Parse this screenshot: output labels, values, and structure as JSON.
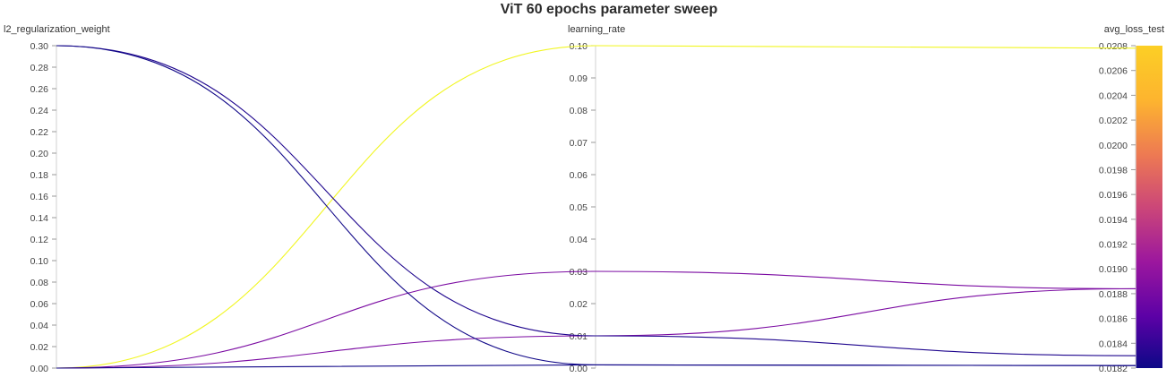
{
  "chart_data": {
    "type": "parallel_coordinates",
    "title": "ViT 60 epochs parameter sweep",
    "axes": [
      {
        "name": "l2_regularization_weight",
        "range": [
          0,
          0.3
        ],
        "ticks": [
          "0.00",
          "0.02",
          "0.04",
          "0.06",
          "0.08",
          "0.10",
          "0.12",
          "0.14",
          "0.16",
          "0.18",
          "0.20",
          "0.22",
          "0.24",
          "0.26",
          "0.28",
          "0.30"
        ]
      },
      {
        "name": "learning_rate",
        "range": [
          0,
          0.1
        ],
        "ticks": [
          "0.00",
          "0.01",
          "0.02",
          "0.03",
          "0.04",
          "0.05",
          "0.06",
          "0.07",
          "0.08",
          "0.09",
          "0.10"
        ]
      },
      {
        "name": "avg_loss_test",
        "range": [
          0.0182,
          0.0208
        ],
        "ticks": [
          "0.0182",
          "0.0184",
          "0.0186",
          "0.0188",
          "0.0190",
          "0.0192",
          "0.0194",
          "0.0196",
          "0.0198",
          "0.0200",
          "0.0202",
          "0.0204",
          "0.0206",
          "0.0208"
        ]
      }
    ],
    "colorscale": [
      "#0d0887",
      "#5c01a6",
      "#9c179e",
      "#cc4778",
      "#ed7953",
      "#fdb42f",
      "#f0f921"
    ],
    "series": [
      {
        "values": [
          0.0,
          0.1,
          0.02078
        ]
      },
      {
        "values": [
          0.0,
          0.03,
          0.01884
        ]
      },
      {
        "values": [
          0.0,
          0.01,
          0.01884
        ]
      },
      {
        "values": [
          0.0,
          0.001,
          0.01822
        ]
      },
      {
        "values": [
          0.3,
          0.01,
          0.0183
        ]
      },
      {
        "values": [
          0.3,
          0.001,
          0.01822
        ]
      }
    ]
  }
}
